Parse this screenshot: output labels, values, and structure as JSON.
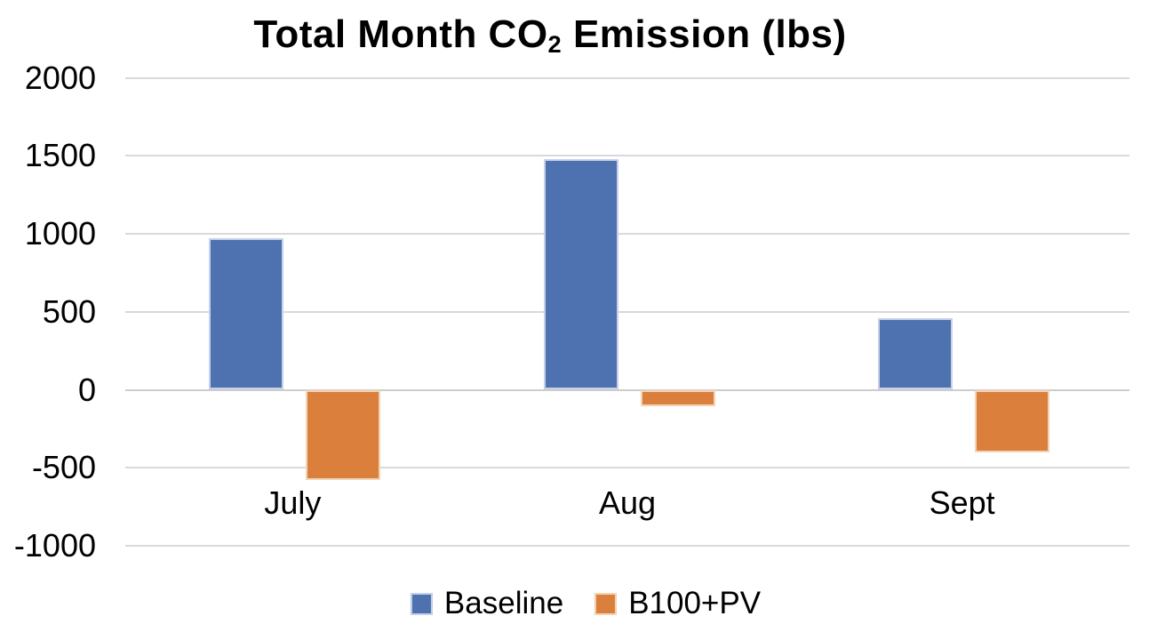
{
  "title": {
    "prefix": "Total Month CO",
    "subscript": "2",
    "suffix": " Emission (lbs)"
  },
  "chart_data": {
    "type": "bar",
    "title": "Total Month CO₂ Emission (lbs)",
    "categories": [
      "July",
      "Aug",
      "Sept"
    ],
    "series": [
      {
        "name": "Baseline",
        "values": [
          970,
          1480,
          460
        ],
        "color": "#4E71B0",
        "border_color": "#C6D1E9"
      },
      {
        "name": "B100+PV",
        "values": [
          -580,
          -105,
          -400
        ],
        "color": "#DA7F3C",
        "border_color": "#F3D4B4"
      }
    ],
    "xlabel": "",
    "ylabel": "",
    "ylim": [
      -1000,
      2000
    ],
    "yticks": [
      2000,
      1500,
      1000,
      500,
      0,
      -500,
      -1000
    ],
    "grid": true,
    "legend_position": "bottom"
  },
  "colors": {
    "background": "#FFFFFF",
    "gridline": "#D9D9D9",
    "zero_line": "#CDCDCD",
    "text": "#000000"
  }
}
